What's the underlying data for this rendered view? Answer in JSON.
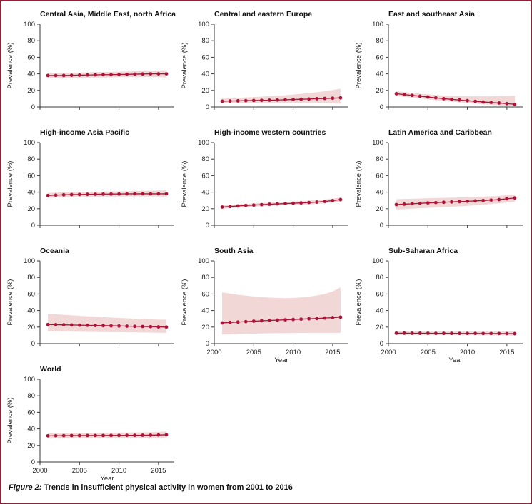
{
  "figure": {
    "caption_label": "Figure 2:",
    "caption_text": "Trends in insufficient physical activity in women from 2001 to 2016"
  },
  "colors": {
    "line": "#ad1338",
    "point": "#ad1338",
    "band": "#f2d7d7",
    "border": "#8c2138",
    "axis": "#3a3a3a",
    "text": "#222222"
  },
  "chart_data": {
    "type": "line",
    "x": [
      2001,
      2002,
      2003,
      2004,
      2005,
      2006,
      2007,
      2008,
      2009,
      2010,
      2011,
      2012,
      2013,
      2014,
      2015,
      2016
    ],
    "xlabel": "Year",
    "ylabel": "Prevalence (%)",
    "ylim": [
      0,
      100
    ],
    "yticks": [
      0,
      20,
      40,
      60,
      80,
      100
    ],
    "xlim": [
      2000,
      2017
    ],
    "xticks": [
      2000,
      2005,
      2010,
      2015
    ],
    "panels": [
      {
        "title": "Central Asia, Middle East, north Africa",
        "show_x_labels": false,
        "values": [
          38,
          38,
          38,
          38.2,
          38.4,
          38.6,
          38.8,
          39,
          39,
          39.2,
          39.4,
          39.6,
          39.8,
          40,
          40,
          40
        ],
        "lower": [
          35,
          35,
          35,
          35,
          35.2,
          35.4,
          35.5,
          35.6,
          35.8,
          36,
          36,
          36,
          36,
          36,
          36,
          35.5
        ],
        "upper": [
          41,
          41,
          41.2,
          41.4,
          41.6,
          41.8,
          42,
          42.2,
          42.4,
          42.6,
          42.8,
          43,
          43.2,
          43.5,
          44,
          44.5
        ]
      },
      {
        "title": "Central and eastern Europe",
        "show_x_labels": false,
        "values": [
          7,
          7.2,
          7.4,
          7.6,
          7.8,
          8,
          8.2,
          8.4,
          8.7,
          9,
          9.3,
          9.6,
          10,
          10.3,
          10.6,
          11
        ],
        "lower": [
          5,
          5,
          5,
          5,
          5,
          5,
          5,
          5,
          5,
          5,
          5,
          5,
          5,
          4.8,
          4.5,
          4
        ],
        "upper": [
          10,
          10.5,
          11,
          11.5,
          12,
          12.5,
          13,
          13.5,
          14.2,
          15,
          15.8,
          16.8,
          17.8,
          19,
          20.5,
          22
        ]
      },
      {
        "title": "East and southeast Asia",
        "show_x_labels": false,
        "values": [
          16,
          15,
          14,
          13,
          12,
          11,
          10,
          9.2,
          8.4,
          7.6,
          6.8,
          6,
          5.4,
          4.8,
          4,
          3.2
        ],
        "lower": [
          13,
          12.2,
          11.2,
          10.2,
          9.2,
          8.2,
          7.2,
          6.4,
          5.6,
          4.8,
          4,
          3.2,
          2.6,
          2,
          1.4,
          1
        ],
        "upper": [
          19,
          18,
          17,
          16,
          15.2,
          14.4,
          13.8,
          13.4,
          13,
          12.8,
          12.8,
          12.8,
          12.8,
          13,
          13.2,
          13.6
        ]
      },
      {
        "title": "High-income Asia Pacific",
        "show_x_labels": false,
        "values": [
          36,
          36.4,
          36.8,
          37,
          37.2,
          37.4,
          37.5,
          37.6,
          37.7,
          37.8,
          37.9,
          38,
          38,
          38,
          38,
          38
        ],
        "lower": [
          33,
          33.4,
          33.8,
          34,
          34.2,
          34.4,
          34.5,
          34.6,
          34.6,
          34.7,
          34.8,
          34.8,
          34.8,
          34.8,
          34.7,
          34.5
        ],
        "upper": [
          39,
          39.4,
          39.8,
          40,
          40.2,
          40.4,
          40.5,
          40.7,
          40.9,
          41,
          41.2,
          41.4,
          41.6,
          41.8,
          42,
          42.5
        ]
      },
      {
        "title": "High-income western countries",
        "show_x_labels": false,
        "values": [
          22,
          22.7,
          23.3,
          23.9,
          24.4,
          24.9,
          25.4,
          25.8,
          26.2,
          26.6,
          27,
          27.5,
          28,
          28.8,
          29.8,
          31
        ],
        "lower": [
          20,
          20.7,
          21.3,
          21.9,
          22.4,
          22.9,
          23.4,
          23.8,
          24.2,
          24.6,
          25,
          25.4,
          25.8,
          26.6,
          27.5,
          28.5
        ],
        "upper": [
          24,
          24.7,
          25.3,
          25.9,
          26.4,
          26.9,
          27.4,
          27.8,
          28.3,
          28.7,
          29.2,
          29.7,
          30.3,
          31.1,
          32.2,
          33.5
        ]
      },
      {
        "title": "Latin America and Caribbean",
        "show_x_labels": false,
        "values": [
          25,
          25.5,
          26,
          26.5,
          27,
          27.4,
          27.8,
          28.2,
          28.6,
          29,
          29.4,
          29.9,
          30.4,
          31,
          32,
          33
        ],
        "lower": [
          19,
          19.5,
          20,
          20.5,
          21,
          21.5,
          22,
          22.5,
          23,
          23.5,
          24,
          24.8,
          25.6,
          26.5,
          27.5,
          28.5
        ],
        "upper": [
          31.5,
          31.8,
          32,
          32.3,
          32.6,
          32.9,
          33.1,
          33.4,
          33.6,
          33.9,
          34.2,
          34.6,
          35,
          35.5,
          36.2,
          37
        ]
      },
      {
        "title": "Oceania",
        "show_x_labels": false,
        "values": [
          23,
          22.9,
          22.7,
          22.5,
          22.3,
          22.1,
          21.9,
          21.7,
          21.5,
          21.3,
          21.1,
          20.9,
          20.7,
          20.5,
          20.2,
          20
        ],
        "lower": [
          15,
          14.9,
          14.7,
          14.5,
          14.4,
          14.2,
          14.1,
          14,
          13.9,
          13.8,
          13.7,
          13.6,
          13.5,
          13.4,
          13.2,
          13
        ],
        "upper": [
          36,
          35.4,
          34.8,
          34.2,
          33.6,
          33,
          32.5,
          32,
          31.5,
          31,
          30.6,
          30.2,
          29.8,
          29.4,
          29,
          29
        ]
      },
      {
        "title": "South Asia",
        "show_x_labels": true,
        "values": [
          25,
          25.6,
          26.1,
          26.6,
          27.1,
          27.6,
          28,
          28.4,
          28.8,
          29.2,
          29.6,
          30,
          30.4,
          30.9,
          31.4,
          32
        ],
        "lower": [
          11,
          11.3,
          11.6,
          11.9,
          12.1,
          12.3,
          12.5,
          12.6,
          12.7,
          12.8,
          12.9,
          13,
          13,
          13,
          13,
          13
        ],
        "upper": [
          62,
          60.5,
          59,
          58,
          57,
          56.2,
          55.6,
          55.2,
          55,
          55.2,
          55.8,
          56.8,
          58.2,
          60,
          63,
          68
        ]
      },
      {
        "title": "Sub-Saharan Africa",
        "show_x_labels": true,
        "values": [
          12.6,
          12.6,
          12.5,
          12.5,
          12.5,
          12.4,
          12.4,
          12.4,
          12.3,
          12.3,
          12.3,
          12.2,
          12.2,
          12.2,
          12.1,
          12
        ],
        "lower": [
          10.5,
          10.5,
          10.4,
          10.4,
          10.4,
          10.3,
          10.3,
          10.3,
          10.2,
          10.2,
          10.2,
          10.1,
          10.1,
          10,
          10,
          9.8
        ],
        "upper": [
          14.8,
          14.8,
          14.7,
          14.7,
          14.6,
          14.6,
          14.5,
          14.5,
          14.5,
          14.4,
          14.4,
          14.4,
          14.4,
          14.4,
          14.5,
          14.6
        ]
      },
      {
        "title": "World",
        "show_x_labels": true,
        "values": [
          31.6,
          31.7,
          31.8,
          31.9,
          31.9,
          32,
          32,
          32,
          32.1,
          32.1,
          32.2,
          32.2,
          32.3,
          32.4,
          32.6,
          32.8
        ],
        "lower": [
          28.5,
          28.6,
          28.7,
          28.8,
          28.8,
          28.8,
          28.8,
          28.8,
          28.8,
          28.8,
          28.8,
          28.8,
          28.8,
          28.8,
          28.9,
          29
        ],
        "upper": [
          34.8,
          34.9,
          35,
          35.1,
          35.2,
          35.3,
          35.4,
          35.4,
          35.5,
          35.5,
          35.6,
          35.7,
          35.8,
          36,
          36.3,
          36.8
        ]
      }
    ]
  }
}
